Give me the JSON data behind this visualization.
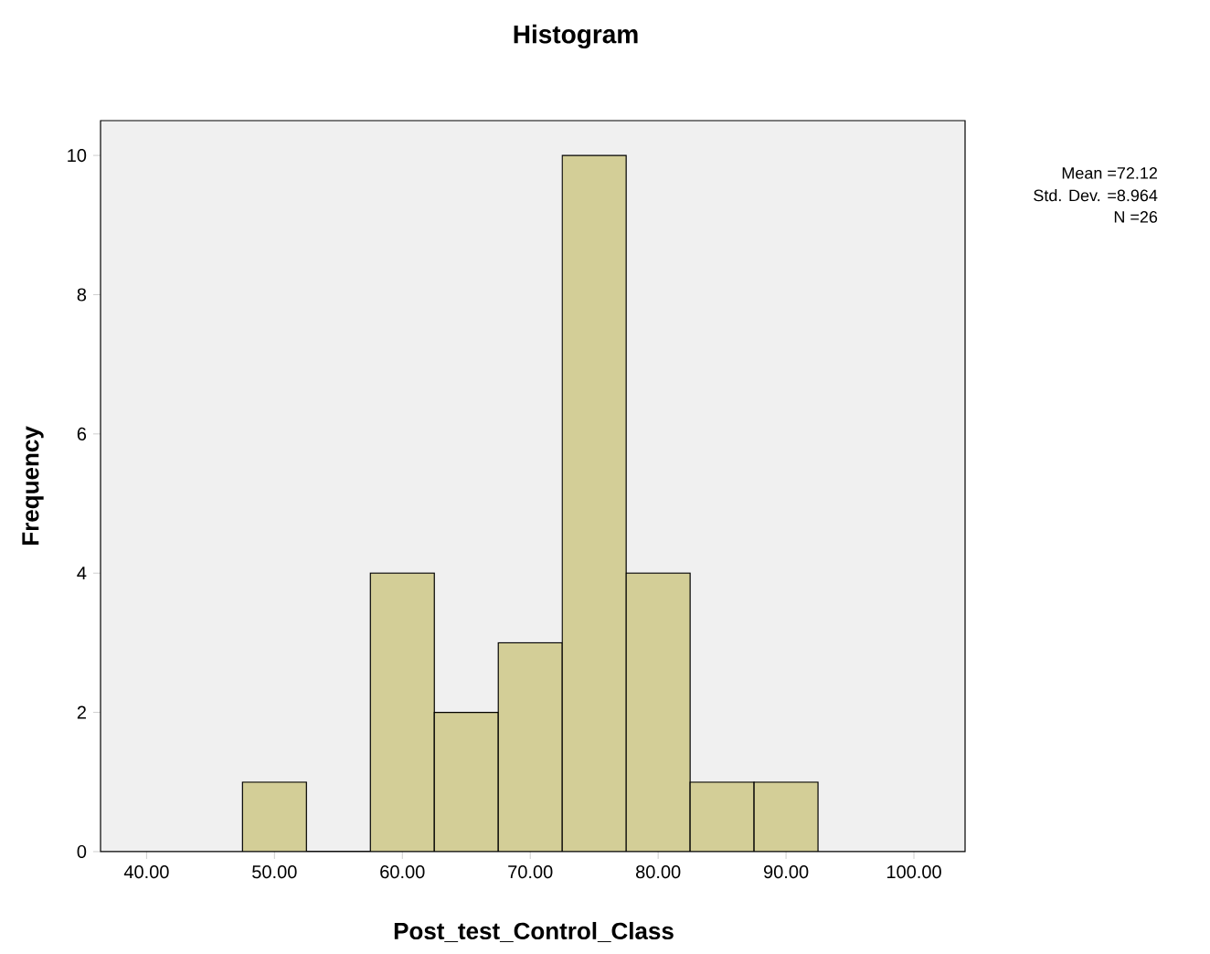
{
  "chart_data": {
    "type": "histogram",
    "title": "Histogram",
    "xlabel": "Post_test_Control_Class",
    "ylabel": "Frequency",
    "bins": [
      47.5,
      52.5,
      57.5,
      62.5,
      67.5,
      72.5,
      77.5,
      82.5,
      87.5,
      92.5
    ],
    "values": [
      1,
      0,
      4,
      2,
      3,
      10,
      4,
      1,
      1
    ],
    "color": "#d3ce97",
    "xlim": [
      36.4,
      104
    ],
    "ylim": [
      0,
      10.5
    ],
    "xticks": [
      {
        "value": 40,
        "label": "40.00"
      },
      {
        "value": 50,
        "label": "50.00"
      },
      {
        "value": 60,
        "label": "60.00"
      },
      {
        "value": 70,
        "label": "70.00"
      },
      {
        "value": 80,
        "label": "80.00"
      },
      {
        "value": 90,
        "label": "90.00"
      },
      {
        "value": 100,
        "label": "100.00"
      }
    ],
    "yticks": [
      0,
      2,
      4,
      6,
      8,
      10
    ],
    "annotations": [
      "Mean =72.12",
      "Std. Dev. =8.964",
      "N =26"
    ]
  }
}
